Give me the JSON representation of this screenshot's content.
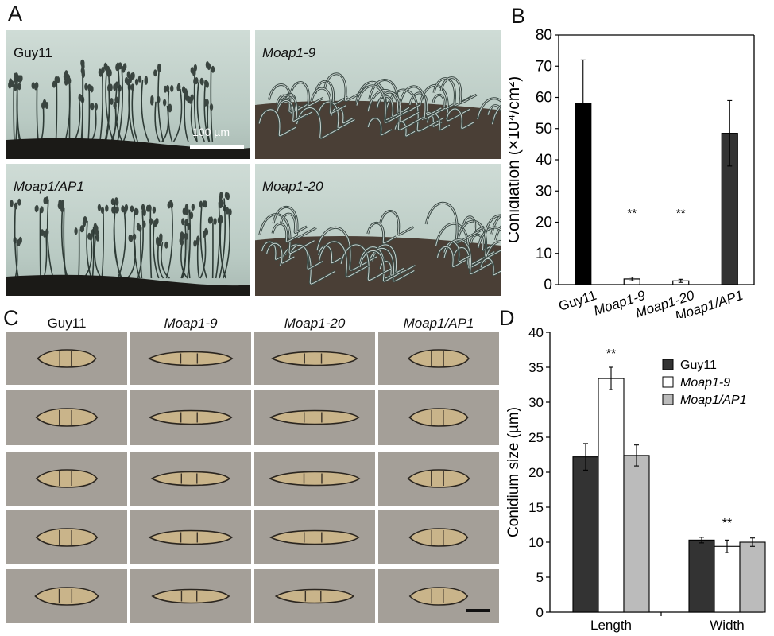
{
  "panel_labels": {
    "a": "A",
    "b": "B",
    "c": "C",
    "d": "D"
  },
  "panel_a": {
    "images": [
      {
        "label": "Guy11",
        "italic": false,
        "phenotype": "conidiophores"
      },
      {
        "label": "Moap1-9",
        "italic": true,
        "phenotype": "hyphae"
      },
      {
        "label": "Moap1/AP1",
        "italic": true,
        "phenotype": "conidiophores"
      },
      {
        "label": "Moap1-20",
        "italic": true,
        "phenotype": "hyphae"
      }
    ],
    "scale_label": "100 µm"
  },
  "panel_c": {
    "columns": [
      {
        "label": "Guy11",
        "italic": false,
        "shape": "normal"
      },
      {
        "label": "Moap1-9",
        "italic": true,
        "shape": "elongated"
      },
      {
        "label": "Moap1-20",
        "italic": true,
        "shape": "elongated"
      },
      {
        "label": "Moap1/AP1",
        "italic": true,
        "shape": "normal"
      }
    ],
    "rows": 5
  },
  "chart_data": [
    {
      "type": "bar",
      "panel": "B",
      "ylabel": "Conidiation (×10⁴/cm²)",
      "ylim": [
        0,
        80
      ],
      "yticks": [
        0,
        10,
        20,
        30,
        40,
        50,
        60,
        70,
        80
      ],
      "categories": [
        "Guy11",
        "Moap1-9",
        "Moap1-20",
        "Moap1/AP1"
      ],
      "values": [
        58,
        1.8,
        1.2,
        48.5
      ],
      "errors": [
        14,
        0.6,
        0.5,
        10.5
      ],
      "annotations": [
        "",
        "**",
        "**",
        ""
      ],
      "colors": [
        "#000000",
        "#ffffff",
        "#ffffff",
        "#333333"
      ]
    },
    {
      "type": "bar",
      "panel": "D",
      "ylabel": "Conidium size (µm)",
      "ylim": [
        0,
        40
      ],
      "yticks": [
        0,
        5,
        10,
        15,
        20,
        25,
        30,
        35,
        40
      ],
      "categories": [
        "Length",
        "Width"
      ],
      "series": [
        {
          "name": "Guy11",
          "values": [
            22.2,
            10.3
          ],
          "errors": [
            1.9,
            0.4
          ],
          "color": "#333333"
        },
        {
          "name": "Moap1-9",
          "values": [
            33.4,
            9.4
          ],
          "errors": [
            1.6,
            0.9
          ],
          "color": "#ffffff"
        },
        {
          "name": "Moap1/AP1",
          "values": [
            22.4,
            10.0
          ],
          "errors": [
            1.5,
            0.6
          ],
          "color": "#bbbbbb"
        }
      ],
      "annotations": [
        {
          "category": "Length",
          "text": "**"
        },
        {
          "category": "Width",
          "text": "**"
        }
      ],
      "legend": "top-right"
    }
  ]
}
